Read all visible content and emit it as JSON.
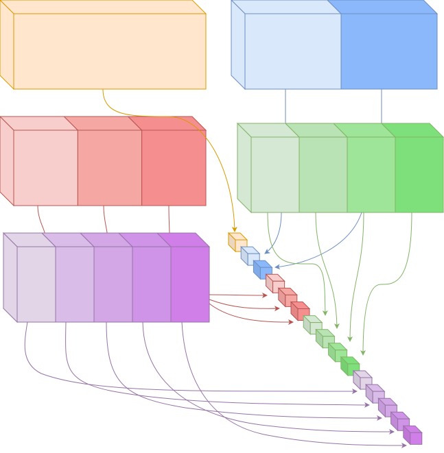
{
  "diagram": {
    "groups": [
      {
        "id": "orange",
        "segments": 1,
        "colors": [
          "#ffe6cc"
        ],
        "stroke": "#d79b00",
        "small_cubes": 1
      },
      {
        "id": "blue",
        "segments": 2,
        "colors": [
          "#dae8fc",
          "#8ab8fb"
        ],
        "stroke": "#6c8ebf",
        "small_cubes": 2
      },
      {
        "id": "red",
        "segments": 3,
        "colors": [
          "#f8cecc",
          "#f5a7a4",
          "#f58f8f"
        ],
        "stroke": "#b85450",
        "small_cubes": 3
      },
      {
        "id": "green",
        "segments": 4,
        "colors": [
          "#d5e8d4",
          "#b9e3b4",
          "#9ee599",
          "#7ee07a"
        ],
        "stroke": "#82b366",
        "small_cubes": 4
      },
      {
        "id": "purple",
        "segments": 5,
        "colors": [
          "#e1d5e7",
          "#d9bde8",
          "#d3a7e6",
          "#cf93e7",
          "#cf7fe7"
        ],
        "stroke": "#9673a6",
        "small_cubes": 5
      }
    ],
    "arrow_colors": {
      "orange": "#d79b00",
      "blue": "#6c8ebf",
      "red": "#b85450",
      "green": "#82b366",
      "purple": "#9673a6"
    }
  }
}
